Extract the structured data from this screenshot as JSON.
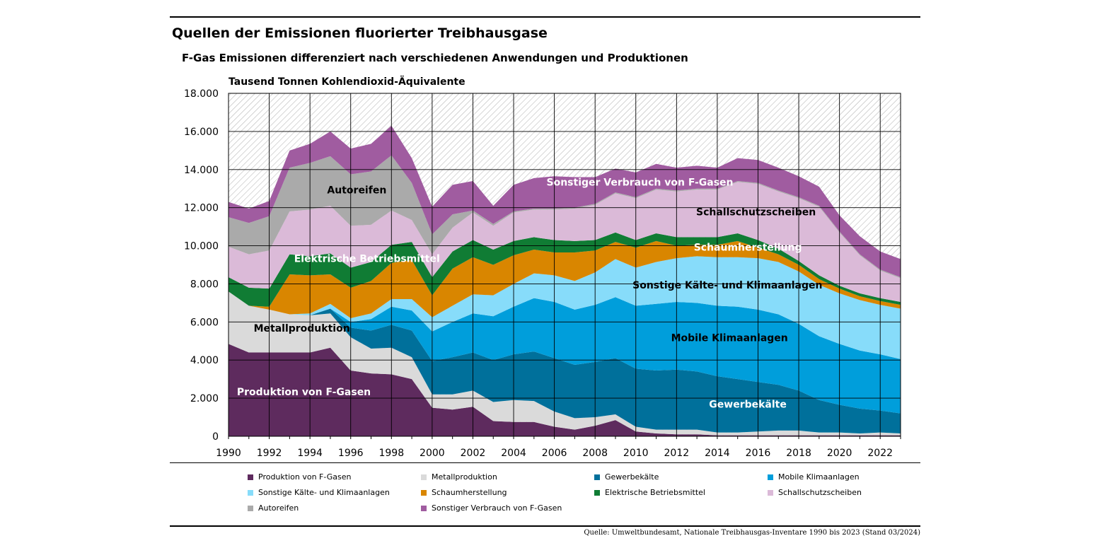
{
  "header": {
    "title": "Quellen der Emissionen fluorierter Treibhausgase",
    "subtitle": "F-Gas Emissionen differenziert nach verschiedenen Anwendungen und Produktionen"
  },
  "source": "Quelle: Umweltbundesamt, Nationale Treibhausgas-Inventare 1990 bis 2023 (Stand 03/2024)",
  "chart_data": {
    "type": "area",
    "stacked": true,
    "ylabel": "Tausend Tonnen Kohlendioxid-Äquivalente",
    "ylim": [
      0,
      18000
    ],
    "yticks": [
      0,
      2000,
      4000,
      6000,
      8000,
      10000,
      12000,
      14000,
      16000,
      18000
    ],
    "ytick_labels": [
      "0",
      "2.000",
      "4.000",
      "6.000",
      "8.000",
      "10.000",
      "12.000",
      "14.000",
      "16.000",
      "18.000"
    ],
    "xlim": [
      1990,
      2023
    ],
    "xticks": [
      1990,
      1992,
      1994,
      1996,
      1998,
      2000,
      2002,
      2004,
      2006,
      2008,
      2010,
      2012,
      2014,
      2016,
      2018,
      2020,
      2022
    ],
    "xtick_labels": [
      "1990",
      "1992",
      "1994",
      "1996",
      "1998",
      "2000",
      "2002",
      "2004",
      "2006",
      "2008",
      "2010",
      "2012",
      "2014",
      "2016",
      "2018",
      "2020",
      "2022"
    ],
    "grid": true,
    "legend_position": "bottom",
    "x": [
      1990,
      1991,
      1992,
      1993,
      1994,
      1995,
      1996,
      1997,
      1998,
      1999,
      2000,
      2001,
      2002,
      2003,
      2004,
      2005,
      2006,
      2007,
      2008,
      2009,
      2010,
      2011,
      2012,
      2013,
      2014,
      2015,
      2016,
      2017,
      2018,
      2019,
      2020,
      2021,
      2022,
      2023
    ],
    "series": [
      {
        "name": "Produktion von F-Gasen",
        "color": "#5e2b5e",
        "label": "Produktion von F-Gasen",
        "values": [
          4850,
          4400,
          4400,
          4400,
          4400,
          4650,
          3450,
          3300,
          3250,
          3000,
          1500,
          1400,
          1550,
          800,
          750,
          750,
          500,
          350,
          550,
          850,
          250,
          150,
          100,
          100,
          50,
          50,
          50,
          50,
          50,
          50,
          50,
          50,
          50,
          50
        ]
      },
      {
        "name": "Metallproduktion",
        "color": "#dadada",
        "label": "Metallproduktion",
        "values": [
          2750,
          2450,
          2250,
          2000,
          1950,
          1800,
          1750,
          1300,
          1400,
          1150,
          700,
          800,
          850,
          1000,
          1150,
          1100,
          800,
          600,
          450,
          300,
          250,
          200,
          250,
          250,
          150,
          150,
          200,
          250,
          250,
          150,
          150,
          100,
          150,
          100
        ]
      },
      {
        "name": "Gewerbekälte",
        "color": "#00709b",
        "label": "Gewerbekälte",
        "values": [
          0,
          0,
          0,
          0,
          0,
          250,
          500,
          950,
          1200,
          1400,
          1750,
          1950,
          2000,
          2200,
          2400,
          2600,
          2800,
          2800,
          2900,
          2950,
          3050,
          3100,
          3150,
          3050,
          2950,
          2800,
          2600,
          2400,
          2100,
          1700,
          1450,
          1300,
          1150,
          1050
        ]
      },
      {
        "name": "Mobile Klimaanlagen",
        "color": "#009edb",
        "label": "Mobile Klimaanlagen",
        "values": [
          0,
          0,
          0,
          0,
          0,
          0,
          300,
          600,
          950,
          1050,
          1550,
          1850,
          2050,
          2300,
          2500,
          2800,
          2950,
          2900,
          3000,
          3200,
          3300,
          3500,
          3550,
          3600,
          3700,
          3800,
          3800,
          3700,
          3500,
          3350,
          3200,
          3050,
          2950,
          2850
        ]
      },
      {
        "name": "Sonstige Kälte- und Klimaanlagen",
        "color": "#87dcfa",
        "label": "Sonstige Kälte- und Klimaanlagen",
        "values": [
          0,
          0,
          0,
          0,
          100,
          250,
          200,
          300,
          400,
          600,
          750,
          850,
          1000,
          1100,
          1200,
          1300,
          1400,
          1500,
          1700,
          2000,
          2000,
          2200,
          2300,
          2450,
          2550,
          2600,
          2700,
          2750,
          2750,
          2700,
          2650,
          2650,
          2600,
          2650
        ]
      },
      {
        "name": "Schaumherstellung",
        "color": "#d98600",
        "label": "Schaumherstellung",
        "values": [
          0,
          0,
          150,
          2100,
          2000,
          1550,
          1600,
          1700,
          1900,
          2050,
          1150,
          1950,
          1950,
          1600,
          1500,
          1250,
          1200,
          1500,
          1150,
          900,
          1050,
          1100,
          650,
          600,
          650,
          850,
          550,
          400,
          350,
          300,
          250,
          200,
          200,
          200
        ]
      },
      {
        "name": "Elektrische Betriebsmittel",
        "color": "#107c34",
        "label": "Elektrische Betriebsmittel",
        "values": [
          750,
          950,
          950,
          1050,
          1000,
          1100,
          1050,
          1000,
          950,
          950,
          950,
          900,
          900,
          800,
          750,
          650,
          650,
          600,
          550,
          500,
          400,
          400,
          450,
          400,
          400,
          400,
          400,
          300,
          200,
          200,
          150,
          150,
          150,
          150
        ]
      },
      {
        "name": "Schallschutzscheiben",
        "color": "#dbbad8",
        "label": "Schallschutzscheiben",
        "values": [
          1600,
          1750,
          2000,
          2250,
          2450,
          2500,
          2200,
          1950,
          1800,
          1150,
          1200,
          1250,
          1450,
          1250,
          1500,
          1450,
          1600,
          1700,
          1850,
          2050,
          2200,
          2300,
          2400,
          2500,
          2500,
          2700,
          2950,
          3000,
          3300,
          3600,
          2800,
          2000,
          1450,
          1250
        ]
      },
      {
        "name": "Autoreifen",
        "color": "#aaaaaa",
        "label": "Autoreifen",
        "values": [
          1550,
          1650,
          1800,
          2300,
          2450,
          2600,
          2700,
          2800,
          2900,
          1950,
          1050,
          700,
          100,
          100,
          50,
          50,
          50,
          50,
          50,
          50,
          50,
          50,
          50,
          50,
          50,
          50,
          50,
          50,
          50,
          50,
          50,
          50,
          50,
          50
        ]
      },
      {
        "name": "Sonstiger Verbrauch von F-Gasen",
        "color": "#a05ca0",
        "label": "Sonstiger Verbrauch von F-Gasen",
        "values": [
          800,
          750,
          800,
          900,
          1000,
          1300,
          1350,
          1450,
          1550,
          1300,
          1450,
          1550,
          1550,
          950,
          1400,
          1600,
          1700,
          1600,
          1400,
          1250,
          1300,
          1300,
          1200,
          1200,
          1100,
          1200,
          1200,
          1200,
          1100,
          1000,
          850,
          950,
          950,
          950
        ]
      }
    ],
    "area_labels": [
      {
        "text": "Produktion von F-Gasen",
        "x": 1993.7,
        "y": 2150,
        "color": "#ffffff"
      },
      {
        "text": "Metallproduktion",
        "x": 1993.6,
        "y": 5500,
        "color": "#000000"
      },
      {
        "text": "Elektrische Betriebsmittel",
        "x": 1996.8,
        "y": 9150,
        "color": "#ffffff"
      },
      {
        "text": "Autoreifen",
        "x": 1996.3,
        "y": 12750,
        "color": "#000000"
      },
      {
        "text": "Sonstiger Verbrauch von F-Gasen",
        "x": 2010.2,
        "y": 13150,
        "color": "#ffffff"
      },
      {
        "text": "Schallschutzscheiben",
        "x": 2015.9,
        "y": 11600,
        "color": "#000000"
      },
      {
        "text": "Schaumherstellung",
        "x": 2015.5,
        "y": 9750,
        "color": "#ffffff"
      },
      {
        "text": "Sonstige Kälte- und Klimaanlagen",
        "x": 2014.5,
        "y": 7750,
        "color": "#000000"
      },
      {
        "text": "Mobile Klimaanlagen",
        "x": 2014.6,
        "y": 5000,
        "color": "#000000"
      },
      {
        "text": "Gewerbekälte",
        "x": 2015.5,
        "y": 1500,
        "color": "#ffffff"
      }
    ]
  }
}
